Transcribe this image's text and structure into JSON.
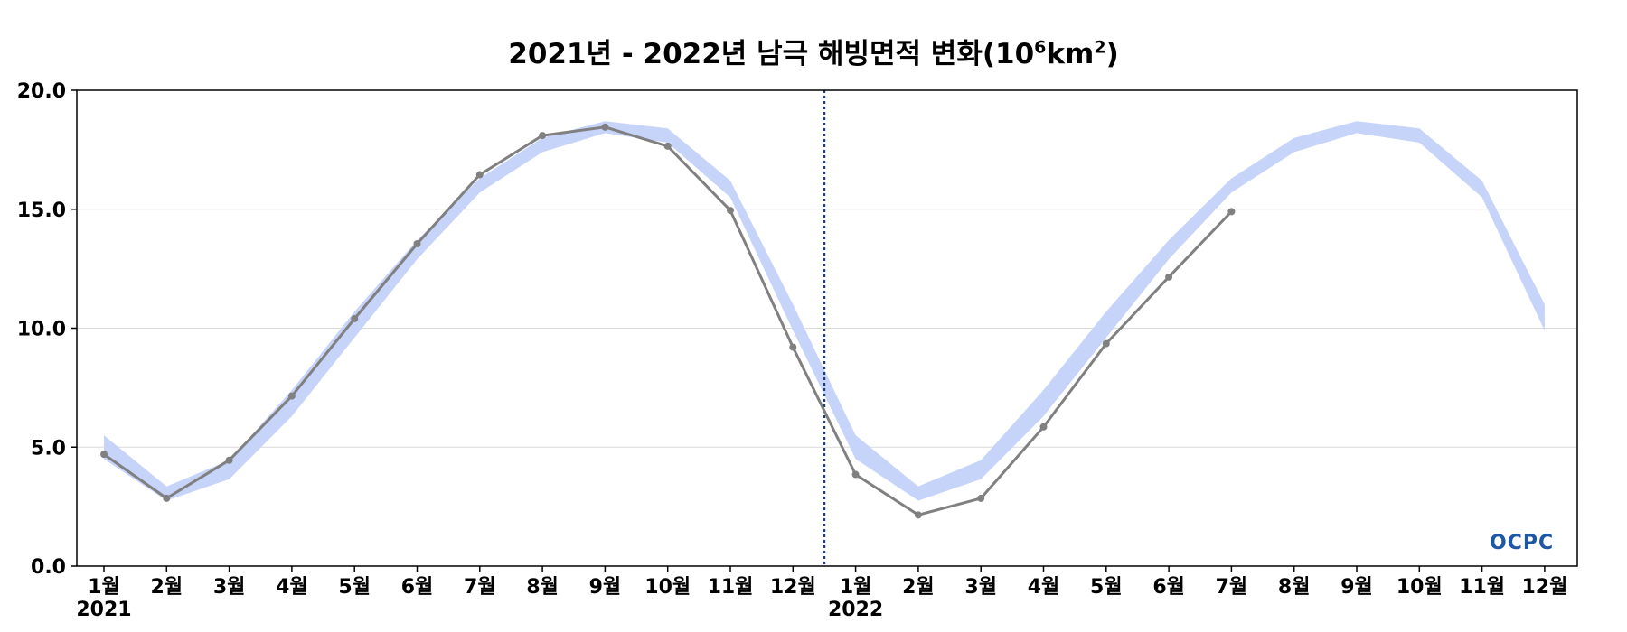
{
  "chart_data": {
    "type": "line",
    "title": {
      "main": "2021년 - 2022년 남극 해빙면적 변화(10",
      "exp1": "6",
      "mid": "km",
      "exp2": "2",
      "end": ")"
    },
    "x_tick_labels": [
      "1월",
      "2월",
      "3월",
      "4월",
      "5월",
      "6월",
      "7월",
      "8월",
      "9월",
      "10월",
      "11월",
      "12월",
      "1월",
      "2월",
      "3월",
      "4월",
      "5월",
      "6월",
      "7월",
      "8월",
      "9월",
      "10월",
      "11월",
      "12월"
    ],
    "year_labels": [
      {
        "label": "2021",
        "index": 0
      },
      {
        "label": "2022",
        "index": 12
      }
    ],
    "ylim": [
      0,
      20
    ],
    "y_ticks": [
      {
        "value": 0,
        "label": "0.0"
      },
      {
        "value": 5,
        "label": "5.0"
      },
      {
        "value": 10,
        "label": "10.0"
      },
      {
        "value": 15,
        "label": "15.0"
      },
      {
        "value": 20,
        "label": "20.0"
      }
    ],
    "grid": "horizontal",
    "year_divider_at": 11.5,
    "series": [
      {
        "kind": "line",
        "color": "#808080",
        "values": [
          4.7,
          2.85,
          4.45,
          7.15,
          10.4,
          13.55,
          16.45,
          18.1,
          18.45,
          17.65,
          14.95,
          9.2,
          3.85,
          2.15,
          2.85,
          5.85,
          9.35,
          12.15,
          14.9
        ]
      },
      {
        "kind": "band",
        "color": "#c7d4fa",
        "upper": [
          5.5,
          3.35,
          4.45,
          7.4,
          10.7,
          13.7,
          16.3,
          18.0,
          18.7,
          18.4,
          16.2,
          11.0,
          5.5,
          3.35,
          4.45,
          7.4,
          10.7,
          13.7,
          16.3,
          18.0,
          18.7,
          18.4,
          16.2,
          11.0
        ],
        "lower": [
          4.5,
          2.75,
          3.65,
          6.3,
          9.6,
          12.9,
          15.7,
          17.4,
          18.2,
          17.8,
          15.5,
          9.9,
          4.5,
          2.75,
          3.65,
          6.3,
          9.6,
          12.9,
          15.7,
          17.4,
          18.2,
          17.8,
          15.5,
          9.9
        ]
      }
    ],
    "logo_text": "OCPC",
    "colors": {
      "line": "#808080",
      "band": "#c7d4fa",
      "divider": "#1f3a7a",
      "grid": "#d9d9d9",
      "logo_primary": "#1e57a6",
      "logo_accent": "#2fb0c8"
    }
  }
}
